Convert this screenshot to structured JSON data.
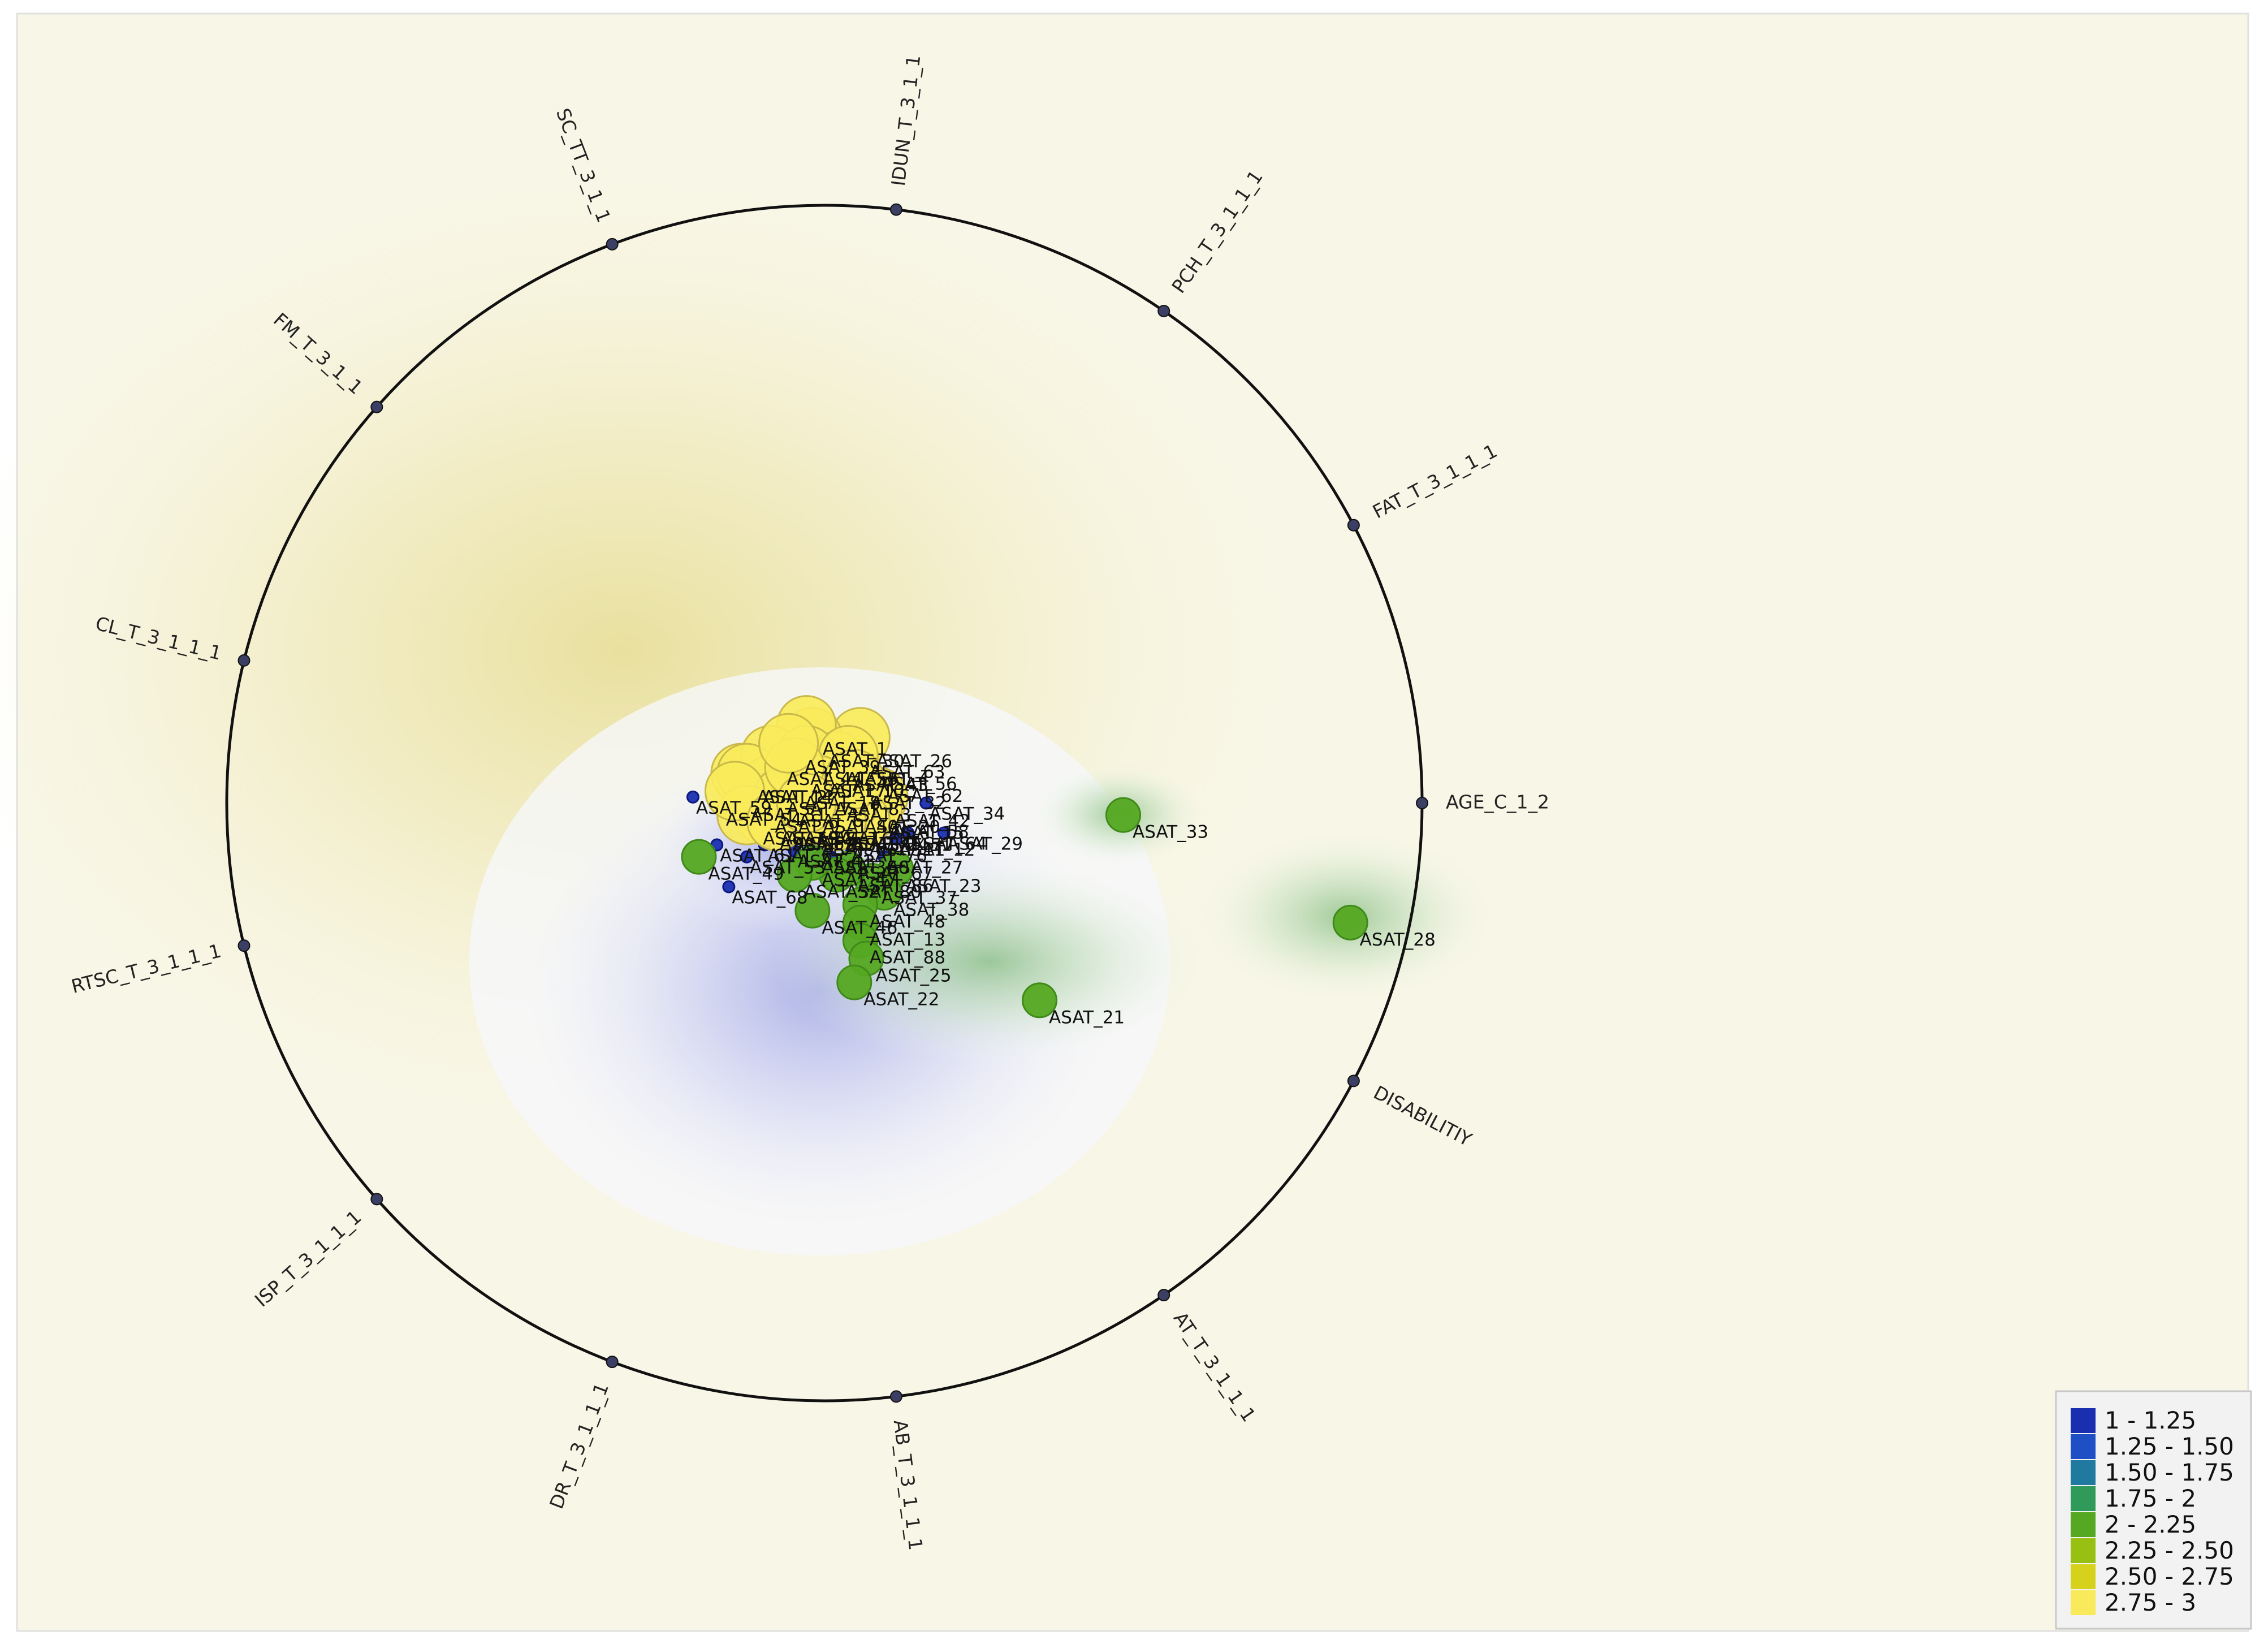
{
  "chart_data": {
    "type": "scatter",
    "projection": "radviz",
    "title": "",
    "xlabel": "",
    "ylabel": "",
    "legend_position": "bottom-right",
    "anchors": [
      "AGE_C_1_2",
      "FAT_T_3_1_1_1",
      "PCH_T_3_1_1_1",
      "IDUN_T_3_1_1",
      "SC_TT_3_1_1",
      "FM_T_3_1_1",
      "CL_T_3_1_1_1",
      "RTSC_T_3_1_1_1",
      "ISP_T_3_1_1_1",
      "DR_T_3_1_1_1",
      "AB_T_3_1_1_1",
      "AT_T_3_1_1_1",
      "DISABILITIY"
    ],
    "anchor_angles_deg": [
      0,
      27.7,
      55.4,
      83.1,
      110.8,
      138.5,
      166.2,
      193.8,
      221.5,
      249.2,
      276.9,
      304.6,
      332.3
    ],
    "legend": [
      {
        "label": "1 - 1.25",
        "color": "#1a2fb0"
      },
      {
        "label": "1.25 - 1.50",
        "color": "#1f4fc4"
      },
      {
        "label": "1.50 - 1.75",
        "color": "#207aa0"
      },
      {
        "label": "1.75 - 2",
        "color": "#2f9a5a"
      },
      {
        "label": "2 - 2.25",
        "color": "#55a822"
      },
      {
        "label": "2.25 - 2.50",
        "color": "#98c012"
      },
      {
        "label": "2.50 - 2.75",
        "color": "#d6d21c"
      },
      {
        "label": "2.75 - 3",
        "color": "#f8ea5a"
      }
    ],
    "points": [
      {
        "name": "ASAT_26",
        "x": 0.06,
        "y": 0.11,
        "value": 3,
        "labeled": true
      },
      {
        "name": "ASAT_30",
        "x": -0.02,
        "y": 0.11,
        "value": 3,
        "labeled": true
      },
      {
        "name": "ASAT_1",
        "x": -0.03,
        "y": 0.13,
        "value": 3,
        "labeled": true
      },
      {
        "name": "ASAT_43",
        "x": 0.02,
        "y": 0.07,
        "value": 3,
        "labeled": true
      },
      {
        "name": "ASAT_14",
        "x": -0.14,
        "y": 0.05,
        "value": 3,
        "labeled": true
      },
      {
        "name": "ASAT_62",
        "x": 0.1,
        "y": 0.03,
        "value": 1,
        "labeled": true
      },
      {
        "name": "ASAT_42",
        "x": 0.09,
        "y": 0.01,
        "value": 3,
        "labeled": true
      },
      {
        "name": "ASAT_34",
        "x": 0.17,
        "y": 0.0,
        "value": 1,
        "labeled": true
      },
      {
        "name": "ASAT_15",
        "x": 0.08,
        "y": -0.01,
        "value": 3,
        "labeled": true
      },
      {
        "name": "ASAT_51",
        "x": 0.06,
        "y": -0.03,
        "value": 3,
        "labeled": true
      },
      {
        "name": "ASAT_57",
        "x": -0.1,
        "y": -0.02,
        "value": 3,
        "labeled": true
      },
      {
        "name": "ASAT_5",
        "x": -0.05,
        "y": -0.05,
        "value": 1,
        "labeled": true
      },
      {
        "name": "ASAT_29",
        "x": 0.2,
        "y": -0.05,
        "value": 1,
        "labeled": true
      },
      {
        "name": "ASAT_12",
        "x": 0.12,
        "y": -0.06,
        "value": 1,
        "labeled": true
      },
      {
        "name": "ASAT_11",
        "x": 0.07,
        "y": -0.06,
        "value": 1,
        "labeled": true
      },
      {
        "name": "ASAT_76",
        "x": 0.04,
        "y": -0.07,
        "value": 1,
        "labeled": true
      },
      {
        "name": "ASAT_27",
        "x": 0.1,
        "y": -0.09,
        "value": 1,
        "labeled": true
      },
      {
        "name": "ASAT_23",
        "x": 0.12,
        "y": -0.11,
        "value": 2,
        "labeled": true
      },
      {
        "name": "ASAT_37",
        "x": 0.08,
        "y": -0.13,
        "value": 2,
        "labeled": true
      },
      {
        "name": "ASAT_38",
        "x": 0.1,
        "y": -0.15,
        "value": 2,
        "labeled": true
      },
      {
        "name": "ASAT_48",
        "x": 0.06,
        "y": -0.17,
        "value": 2,
        "labeled": true
      },
      {
        "name": "ASAT_13",
        "x": 0.06,
        "y": -0.2,
        "value": 2,
        "labeled": true
      },
      {
        "name": "ASAT_49",
        "x": -0.21,
        "y": -0.09,
        "value": 2,
        "labeled": true
      },
      {
        "name": "ASAT_46",
        "x": -0.02,
        "y": -0.18,
        "value": 2,
        "labeled": true
      },
      {
        "name": "ASAT_88",
        "x": 0.06,
        "y": -0.23,
        "value": 2,
        "labeled": true
      },
      {
        "name": "ASAT_25",
        "x": 0.07,
        "y": -0.26,
        "value": 2,
        "labeled": true
      },
      {
        "name": "ASAT_22",
        "x": 0.05,
        "y": -0.3,
        "value": 2,
        "labeled": true
      },
      {
        "name": "ASAT_21",
        "x": 0.36,
        "y": -0.33,
        "value": 2,
        "labeled": true
      },
      {
        "name": "ASAT_33",
        "x": 0.5,
        "y": -0.02,
        "value": 2,
        "labeled": true
      },
      {
        "name": "ASAT_28",
        "x": 0.88,
        "y": -0.2,
        "value": 2,
        "labeled": true
      },
      {
        "name": "ASAT_54",
        "x": -0.17,
        "y": -0.01,
        "value": 1,
        "labeled": true
      },
      {
        "name": "ASAT_53",
        "x": -0.13,
        "y": -0.09,
        "value": 1,
        "labeled": true
      },
      {
        "name": "ASAT_86",
        "x": 0.04,
        "y": -0.11,
        "value": 2,
        "labeled": true
      },
      {
        "name": "ASAT_44",
        "x": -0.09,
        "y": 0.08,
        "value": 3,
        "labeled": true
      },
      {
        "name": "ASAT_10",
        "x": -0.02,
        "y": 0.06,
        "value": 3,
        "labeled": true
      },
      {
        "name": "ASAT_18",
        "x": -0.06,
        "y": 0.04,
        "value": 3,
        "labeled": true
      },
      {
        "name": "ASAT_3",
        "x": 0.01,
        "y": 0.02,
        "value": 3,
        "labeled": true
      },
      {
        "name": "ASAT_9",
        "x": -0.11,
        "y": 0.0,
        "value": 3,
        "labeled": true
      },
      {
        "name": "ASAT_20",
        "x": 0.04,
        "y": 0.0,
        "value": 3,
        "labeled": true
      },
      {
        "name": "ASAT_60",
        "x": -0.01,
        "y": -0.02,
        "value": 3,
        "labeled": true
      },
      {
        "name": "ASAT_7",
        "x": -0.09,
        "y": 0.03,
        "value": 3,
        "labeled": true
      },
      {
        "name": "ASAT_64",
        "x": 0.14,
        "y": -0.05,
        "value": 1,
        "labeled": true
      },
      {
        "name": "ASAT_80",
        "x": 0.02,
        "y": -0.12,
        "value": 2,
        "labeled": true
      },
      {
        "name": "ASAT_36",
        "x": -0.01,
        "y": -0.09,
        "value": 1,
        "labeled": true
      },
      {
        "name": "ASAT_41",
        "x": -0.05,
        "y": -0.08,
        "value": 1,
        "labeled": true
      },
      {
        "name": "ASAT_16",
        "x": -0.04,
        "y": -0.02,
        "value": 3,
        "labeled": true
      },
      {
        "name": "ASAT_55",
        "x": -0.03,
        "y": 0.08,
        "value": 3,
        "labeled": true
      },
      {
        "name": "ASAT_2",
        "x": -0.13,
        "y": 0.05,
        "value": 3,
        "labeled": true
      },
      {
        "name": "ASAT_4",
        "x": 0.04,
        "y": 0.08,
        "value": 3,
        "labeled": true
      },
      {
        "name": "ASAT_6",
        "x": -0.07,
        "y": 0.01,
        "value": 3,
        "labeled": true
      },
      {
        "name": "ASAT_8",
        "x": -0.01,
        "y": 0.03,
        "value": 3,
        "labeled": true
      },
      {
        "name": "ASAT_17",
        "x": -0.05,
        "y": 0.06,
        "value": 3,
        "labeled": true
      },
      {
        "name": "ASAT_19",
        "x": -0.13,
        "y": -0.02,
        "value": 3,
        "labeled": true
      },
      {
        "name": "ASAT_24",
        "x": 0.02,
        "y": -0.03,
        "value": 3,
        "labeled": true
      },
      {
        "name": "ASAT_31",
        "x": -0.15,
        "y": 0.02,
        "value": 3,
        "labeled": true
      },
      {
        "name": "ASAT_32",
        "x": 0.05,
        "y": 0.04,
        "value": 3,
        "labeled": true
      },
      {
        "name": "ASAT_35",
        "x": -0.08,
        "y": -0.03,
        "value": 3,
        "labeled": true
      },
      {
        "name": "ASAT_39",
        "x": -0.06,
        "y": 0.1,
        "value": 3,
        "labeled": true
      },
      {
        "name": "ASAT_40",
        "x": -0.03,
        "y": 0.0,
        "value": 3,
        "labeled": true
      },
      {
        "name": "ASAT_45",
        "x": 0.03,
        "y": -0.05,
        "value": 1,
        "labeled": true
      },
      {
        "name": "ASAT_47",
        "x": -0.02,
        "y": -0.1,
        "value": 2,
        "labeled": true
      },
      {
        "name": "ASAT_50",
        "x": 0.01,
        "y": -0.09,
        "value": 1,
        "labeled": true
      },
      {
        "name": "ASAT_52",
        "x": -0.05,
        "y": -0.12,
        "value": 2,
        "labeled": true
      },
      {
        "name": "ASAT_56",
        "x": 0.09,
        "y": 0.05,
        "value": 1,
        "labeled": true
      },
      {
        "name": "ASAT_58",
        "x": 0.11,
        "y": -0.03,
        "value": 1,
        "labeled": true
      },
      {
        "name": "ASAT_59",
        "x": -0.22,
        "y": 0.01,
        "value": 1,
        "labeled": true
      },
      {
        "name": "ASAT_61",
        "x": -0.18,
        "y": -0.07,
        "value": 1,
        "labeled": true
      },
      {
        "name": "ASAT_63",
        "x": 0.07,
        "y": 0.07,
        "value": 1,
        "labeled": true
      },
      {
        "name": "ASAT_65",
        "x": -0.1,
        "y": -0.07,
        "value": 1,
        "labeled": true
      },
      {
        "name": "ASAT_66",
        "x": -0.01,
        "y": -0.06,
        "value": 1,
        "labeled": true
      },
      {
        "name": "ASAT_67",
        "x": 0.05,
        "y": -0.1,
        "value": 1,
        "labeled": true
      },
      {
        "name": "ASAT_68",
        "x": -0.16,
        "y": -0.14,
        "value": 1,
        "labeled": true
      },
      {
        "name": "ASAT_69",
        "x": -0.08,
        "y": -0.05,
        "value": 1,
        "labeled": true
      }
    ]
  }
}
